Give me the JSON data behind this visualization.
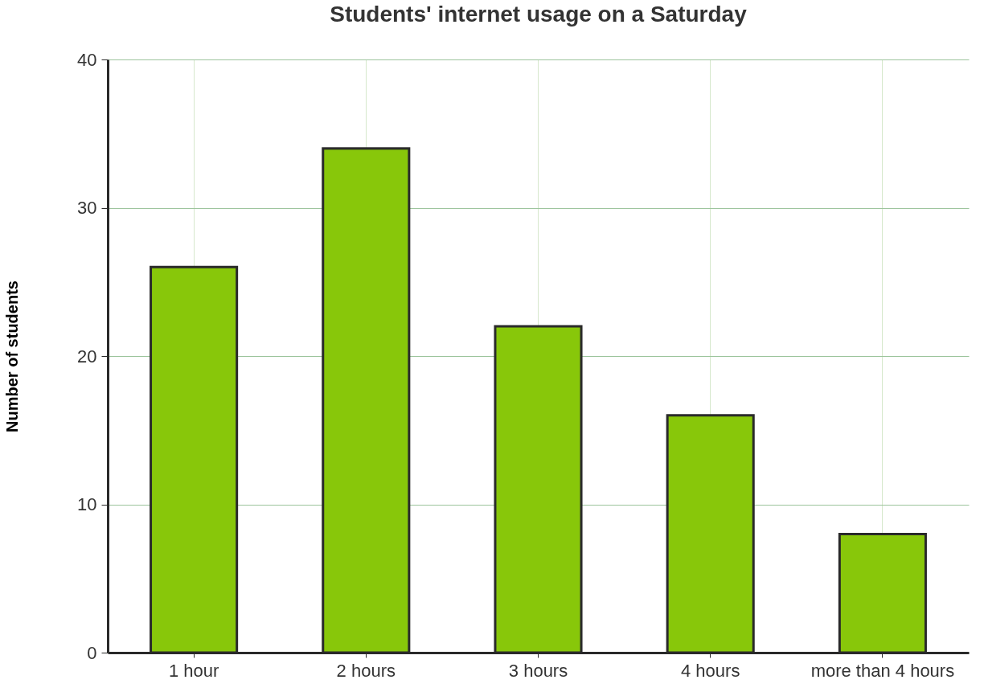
{
  "chart_data": {
    "type": "bar",
    "title": "Students' internet usage on a Saturday",
    "ylabel": "Number of students",
    "categories": [
      "1 hour",
      "2 hours",
      "3 hours",
      "4 hours",
      "more than 4 hours"
    ],
    "values": [
      26,
      34,
      22,
      16,
      8
    ],
    "color": "#88c70a",
    "ylim": [
      0,
      40
    ],
    "yticks": [
      0,
      10,
      20,
      30,
      40
    ],
    "grid": true
  }
}
